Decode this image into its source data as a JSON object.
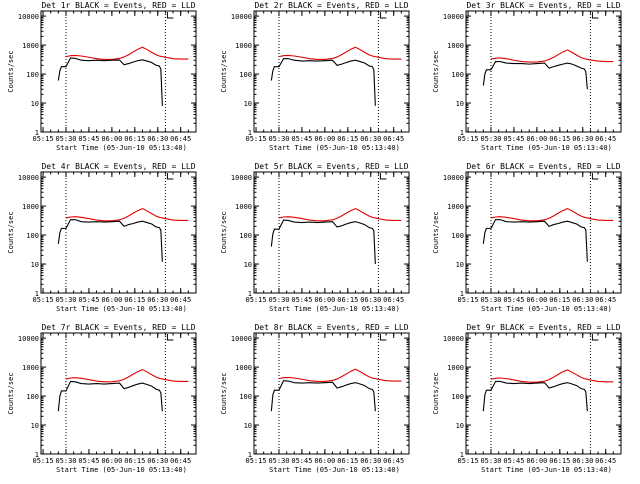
{
  "colors": {
    "events": "#000000",
    "lld": "#e00000",
    "axes": "#000000",
    "background": "#ffffff"
  },
  "shared": {
    "xlabel": "Start Time (05-Jun-10 05:13:40)",
    "ylabel": "Counts/sec",
    "x_ticks": [
      "05:15",
      "05:30",
      "05:45",
      "06:00",
      "06:15",
      "06:30",
      "06:45"
    ],
    "y_ticks": [
      "1",
      "10",
      "100",
      "1000",
      "10000"
    ],
    "xlim": [
      "05:13:40",
      "06:55"
    ],
    "ylim": [
      1,
      15000
    ],
    "yscale": "log",
    "vlines": [
      "05:30",
      "06:35"
    ]
  },
  "chart_data": [
    {
      "type": "line",
      "title": "Det 1r BLACK = Events, RED = LLD",
      "x": [
        "05:25",
        "05:26",
        "05:27",
        "05:30",
        "05:33",
        "05:36",
        "05:40",
        "05:45",
        "05:50",
        "05:55",
        "06:00",
        "06:05",
        "06:08",
        "06:11",
        "06:14",
        "06:17",
        "06:20",
        "06:23",
        "06:26",
        "06:29",
        "06:31",
        "06:32",
        "06:33",
        "06:36",
        "06:40",
        "06:45",
        "06:50"
      ],
      "series": [
        {
          "name": "LLD",
          "color": "#e00000",
          "values": [
            null,
            null,
            null,
            400,
            430,
            440,
            420,
            380,
            340,
            320,
            320,
            345,
            390,
            470,
            580,
            720,
            840,
            700,
            560,
            460,
            420,
            410,
            400,
            370,
            340,
            330,
            330
          ]
        },
        {
          "name": "Events",
          "color": "#000000",
          "values": [
            60,
            130,
            180,
            180,
            360,
            350,
            300,
            290,
            300,
            290,
            300,
            305,
            210,
            230,
            260,
            290,
            310,
            280,
            250,
            200,
            190,
            150,
            8,
            null,
            null,
            null,
            null
          ]
        }
      ]
    },
    {
      "type": "line",
      "title": "Det 2r BLACK = Events, RED = LLD",
      "x": [
        "05:25",
        "05:26",
        "05:27",
        "05:30",
        "05:33",
        "05:36",
        "05:40",
        "05:45",
        "05:50",
        "05:55",
        "06:00",
        "06:05",
        "06:08",
        "06:11",
        "06:14",
        "06:17",
        "06:20",
        "06:23",
        "06:26",
        "06:29",
        "06:31",
        "06:32",
        "06:33",
        "06:36",
        "06:40",
        "06:45",
        "06:50"
      ],
      "series": [
        {
          "name": "LLD",
          "color": "#e00000",
          "values": [
            null,
            null,
            null,
            400,
            430,
            440,
            420,
            380,
            340,
            320,
            320,
            345,
            390,
            470,
            580,
            720,
            840,
            700,
            560,
            460,
            420,
            410,
            400,
            370,
            340,
            330,
            330
          ]
        },
        {
          "name": "Events",
          "color": "#000000",
          "values": [
            60,
            130,
            180,
            180,
            340,
            340,
            300,
            280,
            290,
            280,
            290,
            300,
            200,
            220,
            250,
            280,
            300,
            270,
            240,
            190,
            180,
            140,
            8,
            null,
            null,
            null,
            null
          ]
        }
      ]
    },
    {
      "type": "line",
      "title": "Det 3r BLACK = Events, RED = LLD",
      "x": [
        "05:25",
        "05:26",
        "05:27",
        "05:30",
        "05:33",
        "05:36",
        "05:40",
        "05:45",
        "05:50",
        "05:55",
        "06:00",
        "06:05",
        "06:08",
        "06:11",
        "06:14",
        "06:17",
        "06:20",
        "06:23",
        "06:26",
        "06:29",
        "06:31",
        "06:32",
        "06:33",
        "06:36",
        "06:40",
        "06:45",
        "06:50"
      ],
      "series": [
        {
          "name": "LLD",
          "color": "#e00000",
          "values": [
            null,
            null,
            null,
            330,
            350,
            360,
            340,
            300,
            270,
            260,
            260,
            280,
            320,
            380,
            470,
            580,
            680,
            560,
            450,
            370,
            340,
            330,
            320,
            300,
            280,
            270,
            270
          ]
        },
        {
          "name": "Events",
          "color": "#000000",
          "values": [
            40,
            100,
            140,
            140,
            270,
            270,
            240,
            230,
            230,
            220,
            230,
            240,
            160,
            180,
            200,
            220,
            240,
            220,
            190,
            160,
            150,
            120,
            30,
            null,
            null,
            null,
            null
          ]
        }
      ]
    },
    {
      "type": "line",
      "title": "Det 4r BLACK = Events, RED = LLD",
      "x": [
        "05:25",
        "05:26",
        "05:27",
        "05:30",
        "05:33",
        "05:36",
        "05:40",
        "05:45",
        "05:50",
        "05:55",
        "06:00",
        "06:05",
        "06:08",
        "06:11",
        "06:14",
        "06:17",
        "06:20",
        "06:23",
        "06:26",
        "06:29",
        "06:31",
        "06:32",
        "06:33",
        "06:36",
        "06:40",
        "06:45",
        "06:50"
      ],
      "series": [
        {
          "name": "LLD",
          "color": "#e00000",
          "values": [
            null,
            null,
            null,
            390,
            420,
            430,
            410,
            370,
            330,
            310,
            310,
            335,
            380,
            460,
            570,
            700,
            820,
            680,
            550,
            450,
            410,
            400,
            390,
            360,
            330,
            320,
            320
          ]
        },
        {
          "name": "Events",
          "color": "#000000",
          "values": [
            50,
            120,
            170,
            170,
            340,
            340,
            290,
            280,
            290,
            280,
            290,
            300,
            200,
            230,
            250,
            280,
            300,
            270,
            240,
            190,
            180,
            150,
            12,
            null,
            null,
            null,
            null
          ]
        }
      ]
    },
    {
      "type": "line",
      "title": "Det 5r BLACK = Events, RED = LLD",
      "x": [
        "05:25",
        "05:26",
        "05:27",
        "05:30",
        "05:33",
        "05:36",
        "05:40",
        "05:45",
        "05:50",
        "05:55",
        "06:00",
        "06:05",
        "06:08",
        "06:11",
        "06:14",
        "06:17",
        "06:20",
        "06:23",
        "06:26",
        "06:29",
        "06:31",
        "06:32",
        "06:33",
        "06:36",
        "06:40",
        "06:45",
        "06:50"
      ],
      "series": [
        {
          "name": "LLD",
          "color": "#e00000",
          "values": [
            null,
            null,
            null,
            390,
            420,
            430,
            410,
            370,
            330,
            310,
            310,
            335,
            380,
            460,
            570,
            700,
            820,
            680,
            550,
            450,
            410,
            400,
            390,
            360,
            330,
            320,
            320
          ]
        },
        {
          "name": "Events",
          "color": "#000000",
          "values": [
            40,
            110,
            160,
            160,
            330,
            320,
            280,
            270,
            280,
            270,
            280,
            290,
            190,
            210,
            240,
            270,
            290,
            260,
            230,
            180,
            170,
            140,
            10,
            null,
            null,
            null,
            null
          ]
        }
      ]
    },
    {
      "type": "line",
      "title": "Det 6r BLACK = Events, RED = LLD",
      "x": [
        "05:25",
        "05:26",
        "05:27",
        "05:30",
        "05:33",
        "05:36",
        "05:40",
        "05:45",
        "05:50",
        "05:55",
        "06:00",
        "06:05",
        "06:08",
        "06:11",
        "06:14",
        "06:17",
        "06:20",
        "06:23",
        "06:26",
        "06:29",
        "06:31",
        "06:32",
        "06:33",
        "06:36",
        "06:40",
        "06:45",
        "06:50"
      ],
      "series": [
        {
          "name": "LLD",
          "color": "#e00000",
          "values": [
            null,
            null,
            null,
            390,
            420,
            430,
            410,
            370,
            330,
            310,
            310,
            335,
            380,
            460,
            570,
            700,
            820,
            680,
            550,
            450,
            410,
            400,
            390,
            360,
            330,
            320,
            320
          ]
        },
        {
          "name": "Events",
          "color": "#000000",
          "values": [
            50,
            120,
            170,
            170,
            340,
            340,
            290,
            280,
            290,
            280,
            290,
            300,
            200,
            230,
            250,
            280,
            300,
            270,
            240,
            190,
            180,
            150,
            12,
            null,
            null,
            null,
            null
          ]
        }
      ]
    },
    {
      "type": "line",
      "title": "Det 7r BLACK = Events, RED = LLD",
      "x": [
        "05:25",
        "05:26",
        "05:27",
        "05:30",
        "05:33",
        "05:36",
        "05:40",
        "05:45",
        "05:50",
        "05:55",
        "06:00",
        "06:05",
        "06:08",
        "06:11",
        "06:14",
        "06:17",
        "06:20",
        "06:23",
        "06:26",
        "06:29",
        "06:31",
        "06:32",
        "06:33",
        "06:36",
        "06:40",
        "06:45",
        "06:50"
      ],
      "series": [
        {
          "name": "LLD",
          "color": "#e00000",
          "values": [
            null,
            null,
            null,
            390,
            420,
            430,
            410,
            370,
            330,
            310,
            310,
            335,
            380,
            460,
            570,
            700,
            820,
            680,
            550,
            450,
            410,
            400,
            390,
            360,
            330,
            320,
            320
          ]
        },
        {
          "name": "Events",
          "color": "#000000",
          "values": [
            30,
            100,
            150,
            150,
            320,
            310,
            270,
            260,
            270,
            260,
            270,
            280,
            180,
            200,
            230,
            260,
            280,
            250,
            220,
            170,
            160,
            130,
            30,
            null,
            null,
            null,
            null
          ]
        }
      ]
    },
    {
      "type": "line",
      "title": "Det 8r BLACK = Events, RED = LLD",
      "x": [
        "05:25",
        "05:26",
        "05:27",
        "05:30",
        "05:33",
        "05:36",
        "05:40",
        "05:45",
        "05:50",
        "05:55",
        "06:00",
        "06:05",
        "06:08",
        "06:11",
        "06:14",
        "06:17",
        "06:20",
        "06:23",
        "06:26",
        "06:29",
        "06:31",
        "06:32",
        "06:33",
        "06:36",
        "06:40",
        "06:45",
        "06:50"
      ],
      "series": [
        {
          "name": "LLD",
          "color": "#e00000",
          "values": [
            null,
            null,
            null,
            400,
            430,
            440,
            420,
            380,
            340,
            320,
            320,
            345,
            390,
            470,
            580,
            720,
            840,
            700,
            560,
            460,
            420,
            410,
            400,
            370,
            340,
            330,
            330
          ]
        },
        {
          "name": "Events",
          "color": "#000000",
          "values": [
            30,
            110,
            160,
            160,
            340,
            330,
            290,
            280,
            290,
            280,
            290,
            300,
            190,
            210,
            240,
            270,
            290,
            260,
            230,
            180,
            170,
            140,
            30,
            null,
            null,
            null,
            null
          ]
        }
      ]
    },
    {
      "type": "line",
      "title": "Det 9r BLACK = Events, RED = LLD",
      "x": [
        "05:25",
        "05:26",
        "05:27",
        "05:30",
        "05:33",
        "05:36",
        "05:40",
        "05:45",
        "05:50",
        "05:55",
        "06:00",
        "06:05",
        "06:08",
        "06:11",
        "06:14",
        "06:17",
        "06:20",
        "06:23",
        "06:26",
        "06:29",
        "06:31",
        "06:32",
        "06:33",
        "06:36",
        "06:40",
        "06:45",
        "06:50"
      ],
      "series": [
        {
          "name": "LLD",
          "color": "#e00000",
          "values": [
            null,
            null,
            null,
            380,
            410,
            420,
            400,
            360,
            320,
            300,
            300,
            325,
            370,
            450,
            560,
            690,
            800,
            660,
            540,
            440,
            400,
            390,
            380,
            350,
            320,
            310,
            310
          ]
        },
        {
          "name": "Events",
          "color": "#000000",
          "values": [
            30,
            110,
            160,
            160,
            320,
            320,
            280,
            270,
            280,
            270,
            280,
            290,
            190,
            210,
            240,
            270,
            290,
            260,
            230,
            180,
            170,
            140,
            30,
            null,
            null,
            null,
            null
          ]
        }
      ]
    }
  ]
}
